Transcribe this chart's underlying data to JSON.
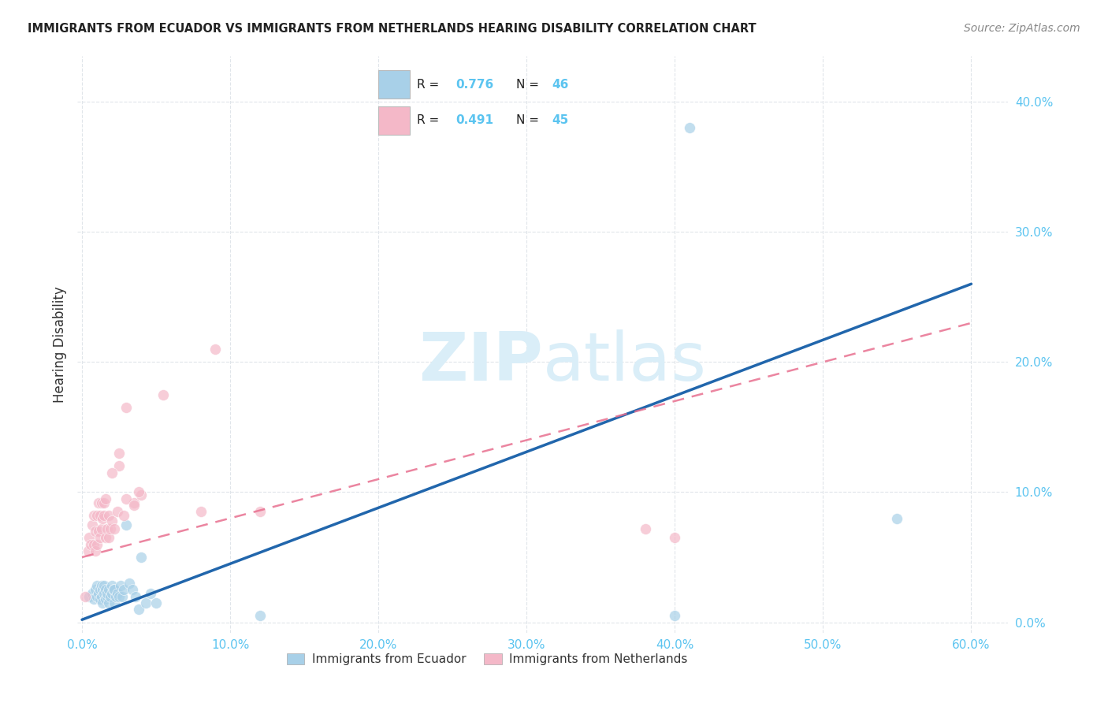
{
  "title": "IMMIGRANTS FROM ECUADOR VS IMMIGRANTS FROM NETHERLANDS HEARING DISABILITY CORRELATION CHART",
  "source": "Source: ZipAtlas.com",
  "legend_label_ecuador": "Immigrants from Ecuador",
  "legend_label_netherlands": "Immigrants from Netherlands",
  "ylabel": "Hearing Disability",
  "legend_blue_R": "R = 0.776",
  "legend_blue_N": "N = 46",
  "legend_pink_R": "R = 0.491",
  "legend_pink_N": "N = 45",
  "xlim": [
    -0.003,
    0.625
  ],
  "ylim": [
    -0.008,
    0.435
  ],
  "yticks": [
    0.0,
    0.1,
    0.2,
    0.3,
    0.4
  ],
  "xticks": [
    0.0,
    0.1,
    0.2,
    0.3,
    0.4,
    0.5,
    0.6
  ],
  "blue_color": "#a8d0e8",
  "pink_color": "#f4b8c8",
  "blue_line_color": "#2166ac",
  "pink_line_color": "#e87090",
  "axis_color": "#5bc4f0",
  "title_color": "#222222",
  "watermark_color": "#daeef8",
  "blue_scatter_x": [
    0.005,
    0.007,
    0.008,
    0.009,
    0.01,
    0.01,
    0.011,
    0.012,
    0.012,
    0.013,
    0.013,
    0.014,
    0.014,
    0.015,
    0.015,
    0.016,
    0.016,
    0.017,
    0.017,
    0.018,
    0.018,
    0.019,
    0.02,
    0.02,
    0.021,
    0.022,
    0.022,
    0.023,
    0.024,
    0.025,
    0.026,
    0.027,
    0.028,
    0.03,
    0.032,
    0.034,
    0.036,
    0.038,
    0.04,
    0.043,
    0.046,
    0.05,
    0.12,
    0.4,
    0.41,
    0.55
  ],
  "blue_scatter_y": [
    0.02,
    0.022,
    0.018,
    0.025,
    0.02,
    0.028,
    0.022,
    0.018,
    0.025,
    0.02,
    0.028,
    0.025,
    0.015,
    0.022,
    0.028,
    0.018,
    0.025,
    0.02,
    0.022,
    0.015,
    0.025,
    0.02,
    0.022,
    0.028,
    0.025,
    0.015,
    0.025,
    0.02,
    0.022,
    0.02,
    0.028,
    0.02,
    0.025,
    0.075,
    0.03,
    0.025,
    0.02,
    0.01,
    0.05,
    0.015,
    0.022,
    0.015,
    0.005,
    0.005,
    0.38,
    0.08
  ],
  "pink_scatter_x": [
    0.002,
    0.004,
    0.005,
    0.006,
    0.007,
    0.008,
    0.008,
    0.009,
    0.009,
    0.01,
    0.01,
    0.011,
    0.011,
    0.012,
    0.012,
    0.013,
    0.013,
    0.014,
    0.015,
    0.015,
    0.016,
    0.016,
    0.017,
    0.018,
    0.018,
    0.019,
    0.02,
    0.022,
    0.024,
    0.025,
    0.028,
    0.03,
    0.035,
    0.04,
    0.055,
    0.08,
    0.09,
    0.12,
    0.38,
    0.4,
    0.02,
    0.025,
    0.03,
    0.035,
    0.038
  ],
  "pink_scatter_y": [
    0.02,
    0.055,
    0.065,
    0.06,
    0.075,
    0.06,
    0.082,
    0.055,
    0.07,
    0.06,
    0.082,
    0.07,
    0.092,
    0.065,
    0.082,
    0.072,
    0.092,
    0.08,
    0.082,
    0.092,
    0.065,
    0.095,
    0.072,
    0.082,
    0.065,
    0.072,
    0.078,
    0.072,
    0.085,
    0.12,
    0.082,
    0.165,
    0.092,
    0.098,
    0.175,
    0.085,
    0.21,
    0.085,
    0.072,
    0.065,
    0.115,
    0.13,
    0.095,
    0.09,
    0.1
  ],
  "blue_line_x": [
    0.0,
    0.6
  ],
  "blue_line_y": [
    0.002,
    0.26
  ],
  "pink_line_x": [
    0.0,
    0.6
  ],
  "pink_line_y": [
    0.05,
    0.23
  ],
  "background_color": "#ffffff",
  "grid_color": "#e0e5ea"
}
